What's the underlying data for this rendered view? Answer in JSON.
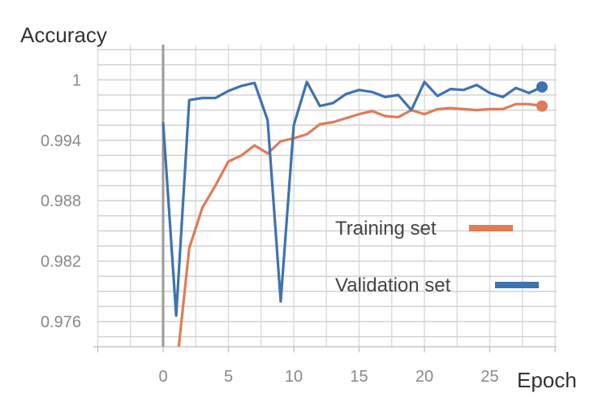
{
  "chart_data": {
    "type": "line",
    "title": "",
    "xlabel": "Epoch",
    "ylabel": "Accuracy",
    "xlim": [
      -5,
      30
    ],
    "ylim": [
      0.9735,
      1.0035
    ],
    "xticks": [
      0,
      5,
      10,
      15,
      20,
      25
    ],
    "xtick_labels": [
      "0",
      "5",
      "10",
      "15",
      "20",
      "25"
    ],
    "yticks": [
      0.976,
      0.982,
      0.988,
      0.994,
      1.0
    ],
    "ytick_labels": [
      "0.976",
      "0.982",
      "0.988",
      "0.994",
      "1"
    ],
    "grid": true,
    "legend_position": "center-right",
    "series": [
      {
        "name": "Training set",
        "color": "#e07b57",
        "x": [
          1.2,
          2,
          3,
          4,
          5,
          6,
          7,
          8,
          9,
          10,
          11,
          12,
          13,
          14,
          15,
          16,
          17,
          18,
          19,
          20,
          21,
          22,
          23,
          24,
          25,
          26,
          27,
          28,
          29
        ],
        "values": [
          0.9735,
          0.9833,
          0.9873,
          0.9895,
          0.9919,
          0.9925,
          0.9935,
          0.9927,
          0.9939,
          0.9942,
          0.9946,
          0.9956,
          0.9958,
          0.9962,
          0.9966,
          0.9969,
          0.9964,
          0.9963,
          0.997,
          0.9966,
          0.9971,
          0.9972,
          0.9971,
          0.997,
          0.9971,
          0.9971,
          0.9976,
          0.9976,
          0.9974
        ]
      },
      {
        "name": "Validation set",
        "color": "#3f72b0",
        "x": [
          0,
          1,
          2,
          3,
          4,
          5,
          6,
          7,
          8,
          9,
          10,
          11,
          12,
          13,
          14,
          15,
          16,
          17,
          18,
          19,
          20,
          21,
          22,
          23,
          24,
          25,
          26,
          27,
          28,
          29
        ],
        "values": [
          0.9958,
          0.9766,
          0.998,
          0.9982,
          0.9982,
          0.9989,
          0.9994,
          0.9997,
          0.996,
          0.978,
          0.9955,
          0.9998,
          0.9974,
          0.9977,
          0.9986,
          0.999,
          0.9988,
          0.9983,
          0.9985,
          0.997,
          0.9998,
          0.9984,
          0.9991,
          0.999,
          0.9995,
          0.9987,
          0.9983,
          0.9992,
          0.9987,
          0.9993
        ]
      }
    ]
  }
}
